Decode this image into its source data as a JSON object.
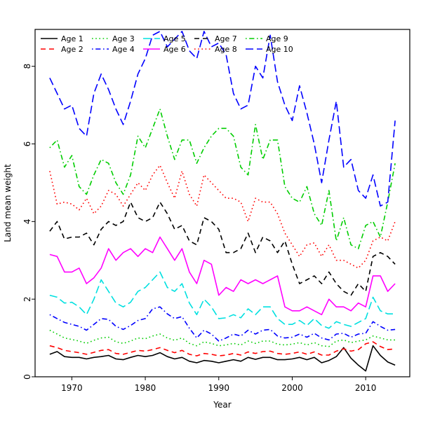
{
  "figure": {
    "background_color": "#ffffff"
  },
  "chart_data": {
    "type": "line",
    "title": "",
    "xlabel": "Year",
    "ylabel": "Land mean weight",
    "xlim": [
      1965,
      2016
    ],
    "ylim": [
      0,
      8.95
    ],
    "x_ticks": [
      1970,
      1980,
      1990,
      2000,
      2010
    ],
    "y_ticks": [
      0,
      2,
      4,
      6,
      8
    ],
    "grid": false,
    "legend_position": "top-inside-two-rows",
    "x": [
      1967,
      1968,
      1969,
      1970,
      1971,
      1972,
      1973,
      1974,
      1975,
      1976,
      1977,
      1978,
      1979,
      1980,
      1981,
      1982,
      1983,
      1984,
      1985,
      1986,
      1987,
      1988,
      1989,
      1990,
      1991,
      1992,
      1993,
      1994,
      1995,
      1996,
      1997,
      1998,
      1999,
      2000,
      2001,
      2002,
      2003,
      2004,
      2005,
      2006,
      2007,
      2008,
      2009,
      2010,
      2011,
      2012,
      2013,
      2014
    ],
    "series": [
      {
        "name": "Age 1",
        "color": "#000000",
        "linestyle": "solid",
        "values": [
          0.58,
          0.65,
          0.52,
          0.5,
          0.5,
          0.46,
          0.5,
          0.52,
          0.55,
          0.46,
          0.44,
          0.5,
          0.55,
          0.52,
          0.55,
          0.62,
          0.52,
          0.46,
          0.5,
          0.4,
          0.36,
          0.42,
          0.4,
          0.36,
          0.4,
          0.44,
          0.4,
          0.5,
          0.45,
          0.5,
          0.5,
          0.44,
          0.44,
          0.46,
          0.5,
          0.44,
          0.5,
          0.36,
          0.42,
          0.52,
          0.75,
          0.48,
          0.3,
          0.15,
          0.8,
          0.55,
          0.38,
          0.3
        ]
      },
      {
        "name": "Age 2",
        "color": "#ff0000",
        "linestyle": "dashed",
        "values": [
          0.8,
          0.75,
          0.68,
          0.65,
          0.62,
          0.58,
          0.63,
          0.68,
          0.7,
          0.6,
          0.58,
          0.63,
          0.68,
          0.66,
          0.7,
          0.75,
          0.68,
          0.62,
          0.68,
          0.58,
          0.54,
          0.6,
          0.58,
          0.54,
          0.56,
          0.6,
          0.56,
          0.64,
          0.6,
          0.65,
          0.66,
          0.6,
          0.58,
          0.6,
          0.64,
          0.58,
          0.64,
          0.56,
          0.56,
          0.66,
          0.72,
          0.66,
          0.7,
          0.85,
          0.9,
          0.78,
          0.7,
          0.72
        ]
      },
      {
        "name": "Age 3",
        "color": "#00cd00",
        "linestyle": "dotted",
        "values": [
          1.2,
          1.1,
          1.0,
          0.96,
          0.92,
          0.86,
          0.94,
          1.0,
          1.02,
          0.9,
          0.86,
          0.92,
          1.0,
          0.98,
          1.05,
          1.1,
          1.0,
          0.94,
          1.0,
          0.86,
          0.8,
          0.9,
          0.86,
          0.8,
          0.82,
          0.86,
          0.82,
          0.92,
          0.86,
          0.92,
          0.92,
          0.84,
          0.82,
          0.84,
          0.88,
          0.82,
          0.88,
          0.8,
          0.78,
          0.92,
          0.95,
          0.88,
          0.92,
          0.95,
          1.05,
          1.0,
          0.95,
          0.95
        ]
      },
      {
        "name": "Age 4",
        "color": "#0000ff",
        "linestyle": "dotdash",
        "values": [
          1.6,
          1.5,
          1.4,
          1.35,
          1.3,
          1.2,
          1.35,
          1.5,
          1.48,
          1.3,
          1.22,
          1.32,
          1.45,
          1.5,
          1.75,
          1.8,
          1.62,
          1.5,
          1.55,
          1.25,
          1.0,
          1.2,
          1.1,
          0.92,
          1.0,
          1.1,
          1.05,
          1.2,
          1.1,
          1.2,
          1.22,
          1.05,
          1.0,
          1.02,
          1.1,
          1.02,
          1.12,
          1.0,
          0.95,
          1.1,
          1.12,
          1.02,
          1.1,
          1.12,
          1.42,
          1.3,
          1.2,
          1.22
        ]
      },
      {
        "name": "Age 5",
        "color": "#00e0e0",
        "linestyle": "longdash",
        "values": [
          2.1,
          2.05,
          1.9,
          1.92,
          1.8,
          1.6,
          2.0,
          2.5,
          2.2,
          1.9,
          1.8,
          1.92,
          2.2,
          2.3,
          2.5,
          2.7,
          2.3,
          2.2,
          2.4,
          1.9,
          1.6,
          2.0,
          1.8,
          1.5,
          1.52,
          1.6,
          1.52,
          1.75,
          1.6,
          1.8,
          1.8,
          1.5,
          1.35,
          1.35,
          1.45,
          1.32,
          1.5,
          1.32,
          1.25,
          1.42,
          1.35,
          1.3,
          1.4,
          1.5,
          2.05,
          1.7,
          1.62,
          1.62
        ]
      },
      {
        "name": "Age 6",
        "color": "#ff00ff",
        "linestyle": "solid",
        "values": [
          3.15,
          3.1,
          2.7,
          2.7,
          2.8,
          2.4,
          2.55,
          2.8,
          3.3,
          3.0,
          3.2,
          3.3,
          3.1,
          3.3,
          3.2,
          3.6,
          3.3,
          3.0,
          3.3,
          2.7,
          2.4,
          3.0,
          2.9,
          2.1,
          2.3,
          2.2,
          2.5,
          2.4,
          2.5,
          2.4,
          2.5,
          2.6,
          1.8,
          1.7,
          1.7,
          1.8,
          1.7,
          1.6,
          2.0,
          1.8,
          1.8,
          1.7,
          1.9,
          1.8,
          2.6,
          2.6,
          2.2,
          2.4
        ]
      },
      {
        "name": "Age 7",
        "color": "#000000",
        "linestyle": "dashed",
        "values": [
          3.75,
          4.0,
          3.55,
          3.6,
          3.6,
          3.7,
          3.4,
          3.8,
          4.0,
          3.9,
          4.0,
          4.5,
          4.1,
          4.0,
          4.1,
          4.5,
          4.2,
          3.8,
          3.9,
          3.5,
          3.4,
          4.1,
          4.0,
          3.8,
          3.2,
          3.2,
          3.3,
          3.7,
          3.2,
          3.6,
          3.5,
          3.2,
          3.5,
          2.9,
          2.4,
          2.5,
          2.6,
          2.4,
          2.7,
          2.4,
          2.2,
          2.1,
          2.4,
          2.2,
          3.1,
          3.2,
          3.1,
          2.9
        ]
      },
      {
        "name": "Age 8",
        "color": "#ff0000",
        "linestyle": "dotted",
        "values": [
          5.3,
          4.45,
          4.5,
          4.45,
          4.3,
          4.6,
          4.2,
          4.4,
          4.8,
          4.7,
          4.4,
          4.7,
          5.0,
          4.8,
          5.2,
          5.45,
          5.0,
          4.6,
          5.3,
          4.7,
          4.4,
          5.2,
          5.0,
          4.8,
          4.6,
          4.6,
          4.5,
          4.0,
          4.6,
          4.5,
          4.5,
          4.2,
          3.7,
          3.4,
          3.1,
          3.4,
          3.45,
          3.1,
          3.4,
          3.0,
          3.0,
          2.9,
          2.8,
          3.0,
          3.5,
          3.6,
          3.5,
          4.0
        ]
      },
      {
        "name": "Age 9",
        "color": "#00cd00",
        "linestyle": "dotdash",
        "values": [
          5.9,
          6.1,
          5.4,
          5.7,
          4.9,
          4.7,
          5.2,
          5.6,
          5.5,
          5.0,
          4.7,
          5.2,
          6.2,
          5.9,
          6.4,
          6.9,
          6.2,
          5.6,
          6.1,
          6.1,
          5.5,
          5.9,
          6.2,
          6.4,
          6.4,
          6.2,
          5.4,
          5.2,
          6.5,
          5.6,
          6.1,
          6.1,
          4.9,
          4.6,
          4.5,
          4.9,
          4.2,
          3.9,
          4.8,
          3.5,
          4.1,
          3.4,
          3.3,
          3.9,
          4.0,
          3.6,
          4.5,
          5.5
        ]
      },
      {
        "name": "Age 10",
        "color": "#0000ff",
        "linestyle": "longdash",
        "values": [
          7.7,
          7.3,
          6.9,
          7.0,
          6.4,
          6.2,
          7.3,
          7.8,
          7.4,
          6.9,
          6.5,
          7.1,
          7.8,
          8.2,
          8.8,
          8.9,
          8.5,
          8.7,
          8.9,
          8.4,
          8.2,
          8.9,
          8.5,
          8.6,
          8.3,
          7.3,
          6.9,
          7.0,
          8.0,
          7.7,
          8.8,
          7.6,
          7.0,
          6.6,
          7.5,
          6.8,
          6.0,
          5.0,
          6.1,
          7.1,
          5.4,
          5.6,
          4.8,
          4.6,
          5.2,
          4.4,
          4.5,
          6.6
        ]
      }
    ]
  }
}
